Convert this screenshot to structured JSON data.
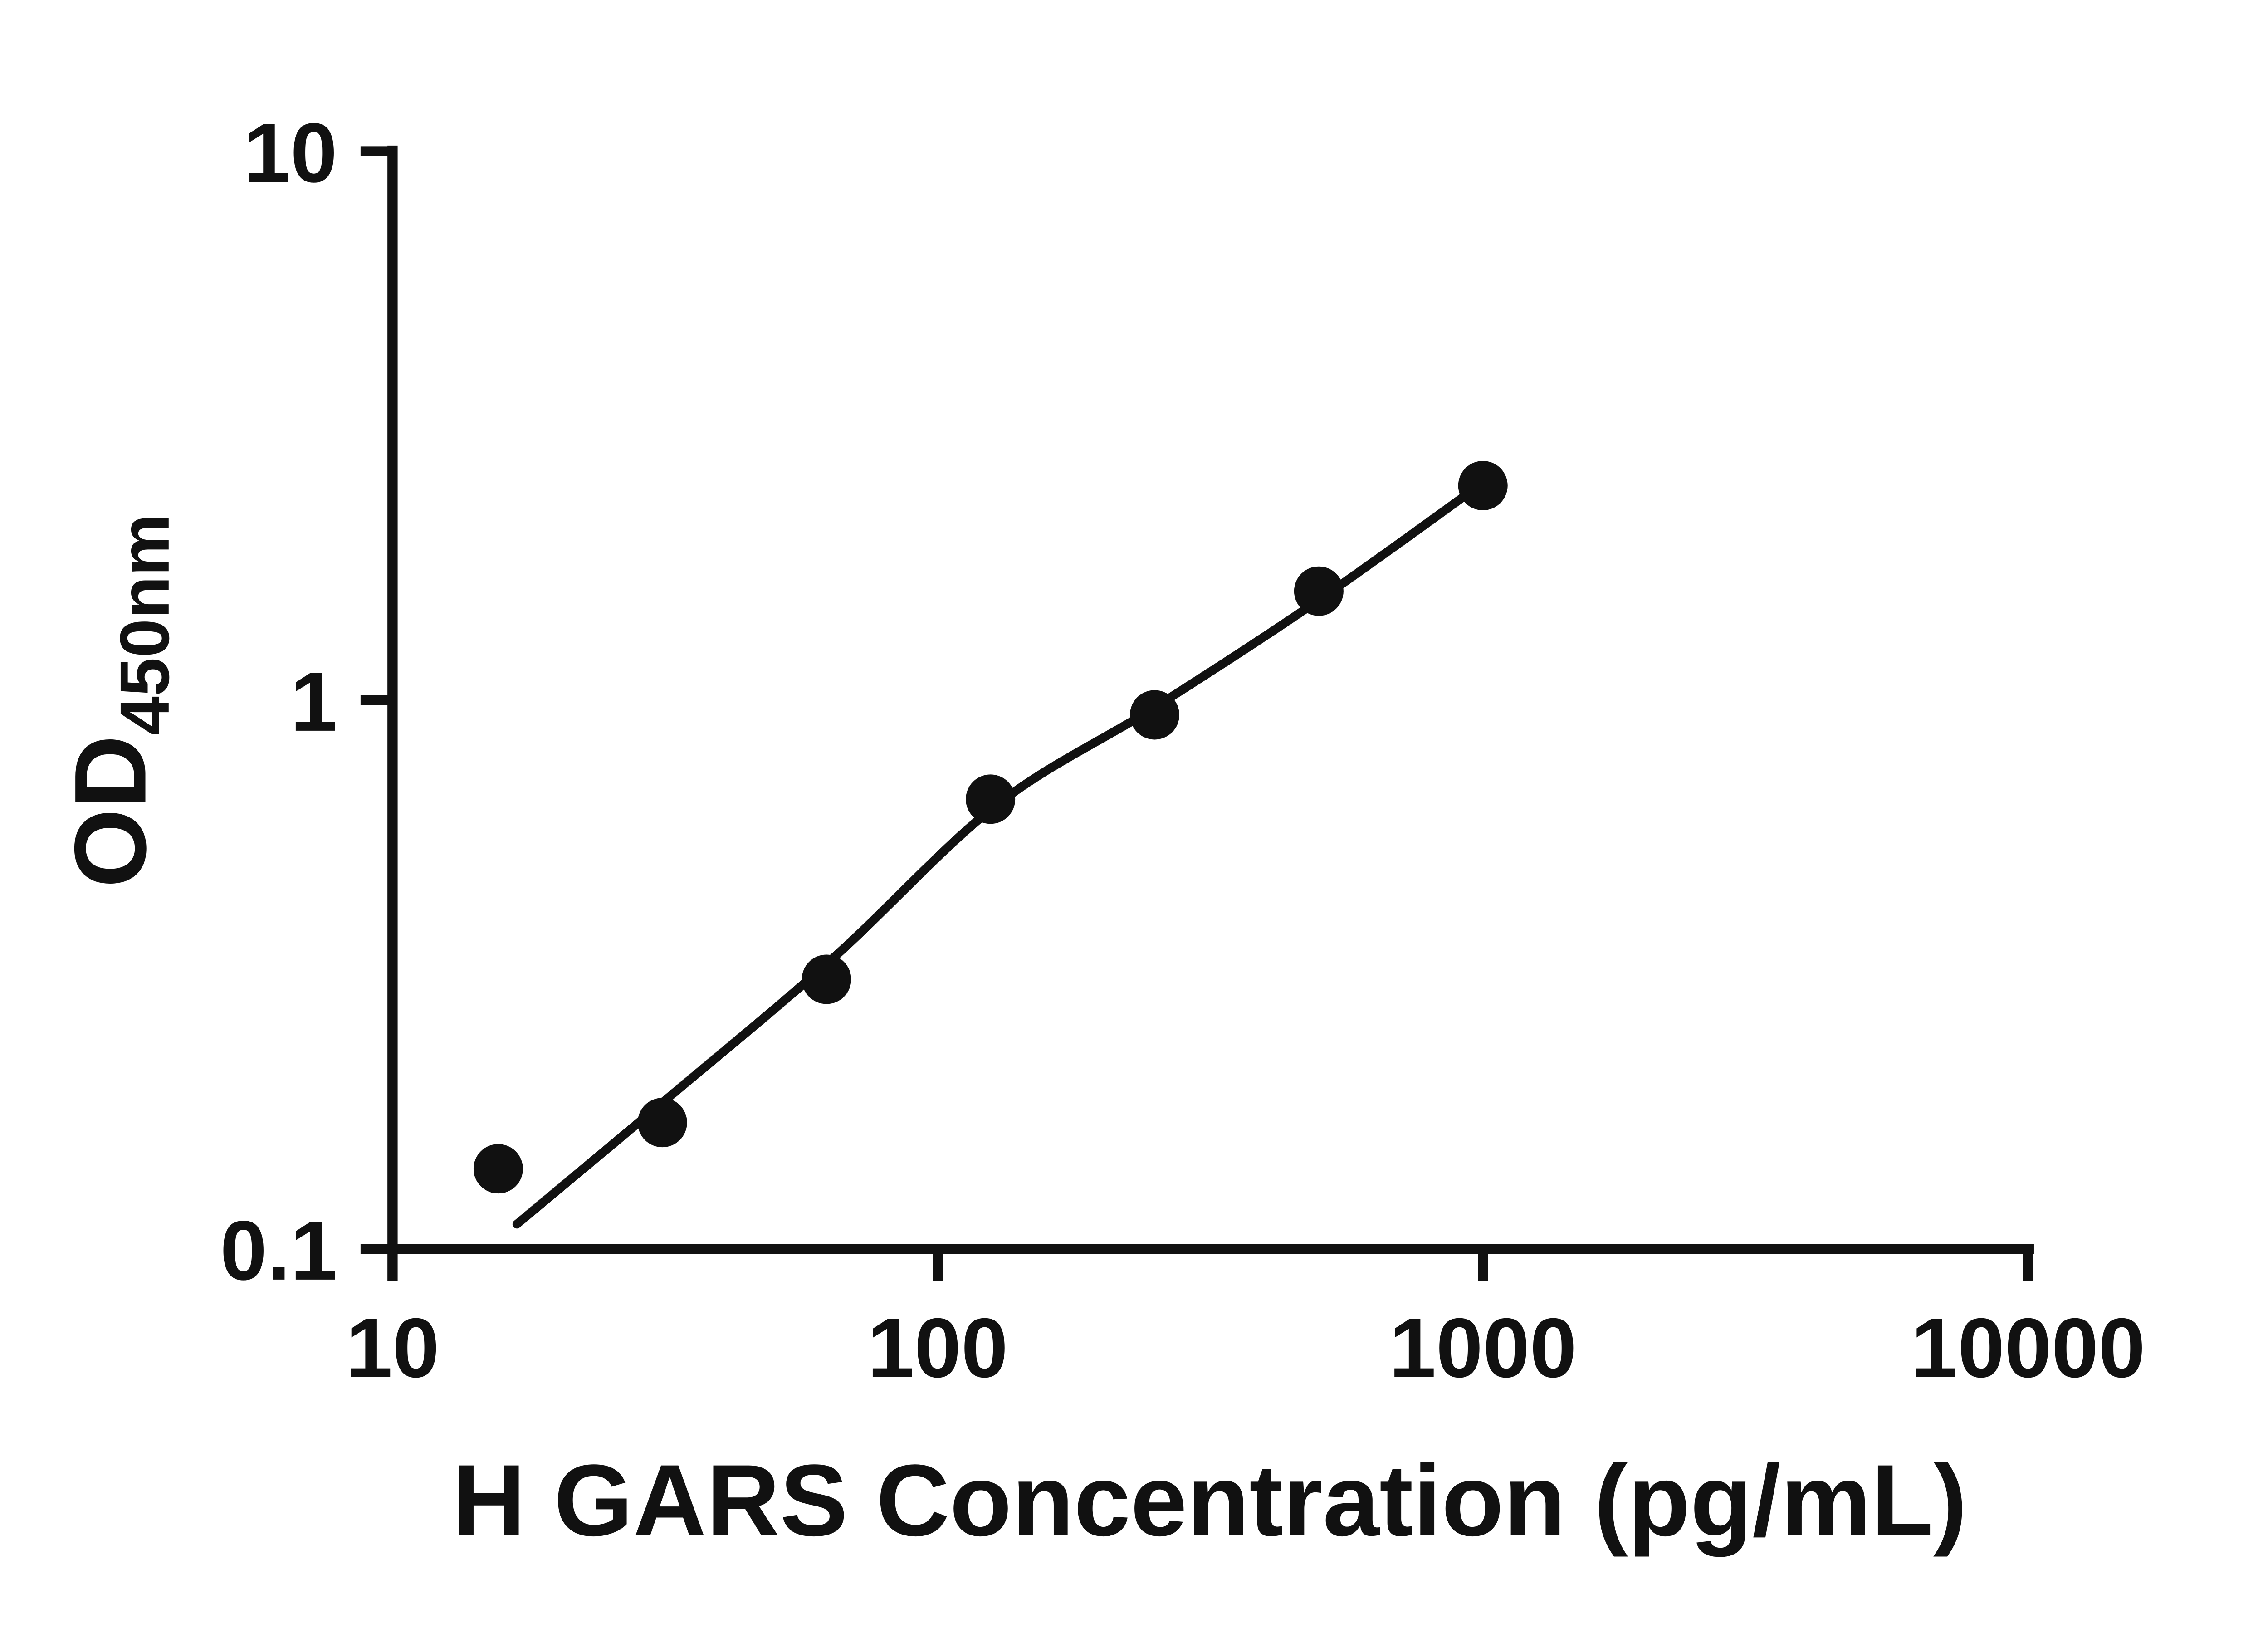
{
  "chart_data": {
    "type": "scatter",
    "title": "",
    "xlabel": "H GARS Concentration (pg/mL)",
    "ylabel_main": "OD",
    "ylabel_sub": "450nm",
    "x_scale": "log",
    "y_scale": "log",
    "xlim": [
      10,
      10000
    ],
    "ylim": [
      0.1,
      10
    ],
    "x_ticks": [
      10,
      100,
      1000,
      10000
    ],
    "y_ticks": [
      0.1,
      1,
      10
    ],
    "grid": false,
    "legend": "none",
    "points": [
      {
        "x": 15.625,
        "y": 0.14
      },
      {
        "x": 31.25,
        "y": 0.17
      },
      {
        "x": 62.5,
        "y": 0.31
      },
      {
        "x": 125,
        "y": 0.66
      },
      {
        "x": 250,
        "y": 0.94
      },
      {
        "x": 500,
        "y": 1.58
      },
      {
        "x": 1000,
        "y": 2.46
      }
    ],
    "fit_curve": {
      "type": "smooth-fit-line",
      "points": [
        {
          "x": 16.9,
          "y": 0.111
        },
        {
          "x": 31.7,
          "y": 0.187
        },
        {
          "x": 64.3,
          "y": 0.339
        },
        {
          "x": 127.9,
          "y": 0.643
        },
        {
          "x": 251.2,
          "y": 0.973
        },
        {
          "x": 502.7,
          "y": 1.528
        },
        {
          "x": 1000,
          "y": 2.489
        }
      ]
    },
    "styles": {
      "ink_color": "#111111",
      "background_color": "#ffffff",
      "point_color": "#111111",
      "line_color": "#111111"
    }
  }
}
